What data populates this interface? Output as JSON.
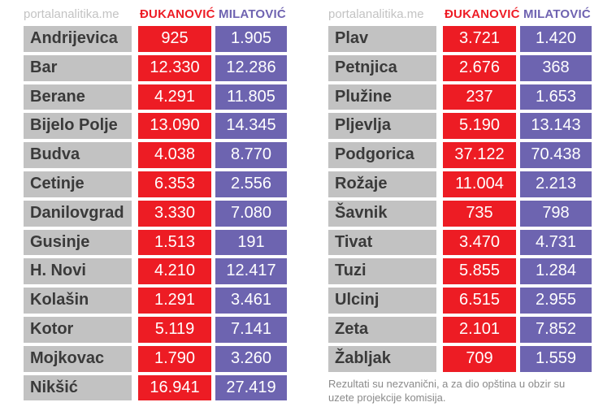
{
  "source": "portalanalitika.me",
  "headers": {
    "dukanovic": "ĐUKANOVIĆ",
    "milatovic": "MILATOVIĆ"
  },
  "colors": {
    "dukanovic": "#ed1c24",
    "milatovic": "#6d64b0",
    "municipality": "#c2c2c2"
  },
  "left": [
    {
      "name": "Andrijevica",
      "dukanovic": "925",
      "milatovic": "1.905"
    },
    {
      "name": "Bar",
      "dukanovic": "12.330",
      "milatovic": "12.286"
    },
    {
      "name": "Berane",
      "dukanovic": "4.291",
      "milatovic": "11.805"
    },
    {
      "name": "Bijelo Polje",
      "dukanovic": "13.090",
      "milatovic": "14.345"
    },
    {
      "name": "Budva",
      "dukanovic": "4.038",
      "milatovic": "8.770"
    },
    {
      "name": "Cetinje",
      "dukanovic": "6.353",
      "milatovic": "2.556"
    },
    {
      "name": "Danilovgrad",
      "dukanovic": "3.330",
      "milatovic": "7.080"
    },
    {
      "name": "Gusinje",
      "dukanovic": "1.513",
      "milatovic": "191"
    },
    {
      "name": "H. Novi",
      "dukanovic": "4.210",
      "milatovic": "12.417"
    },
    {
      "name": "Kolašin",
      "dukanovic": "1.291",
      "milatovic": "3.461"
    },
    {
      "name": "Kotor",
      "dukanovic": "5.119",
      "milatovic": "7.141"
    },
    {
      "name": "Mojkovac",
      "dukanovic": "1.790",
      "milatovic": "3.260"
    },
    {
      "name": "Nikšić",
      "dukanovic": "16.941",
      "milatovic": "27.419"
    }
  ],
  "right": [
    {
      "name": "Plav",
      "dukanovic": "3.721",
      "milatovic": "1.420"
    },
    {
      "name": "Petnjica",
      "dukanovic": "2.676",
      "milatovic": "368"
    },
    {
      "name": "Plužine",
      "dukanovic": "237",
      "milatovic": "1.653"
    },
    {
      "name": "Pljevlja",
      "dukanovic": "5.190",
      "milatovic": "13.143"
    },
    {
      "name": "Podgorica",
      "dukanovic": "37.122",
      "milatovic": "70.438"
    },
    {
      "name": "Rožaje",
      "dukanovic": "11.004",
      "milatovic": "2.213"
    },
    {
      "name": "Šavnik",
      "dukanovic": "735",
      "milatovic": "798"
    },
    {
      "name": "Tivat",
      "dukanovic": "3.470",
      "milatovic": "4.731"
    },
    {
      "name": "Tuzi",
      "dukanovic": "5.855",
      "milatovic": "1.284"
    },
    {
      "name": "Ulcinj",
      "dukanovic": "6.515",
      "milatovic": "2.955"
    },
    {
      "name": "Zeta",
      "dukanovic": "2.101",
      "milatovic": "7.852"
    },
    {
      "name": "Žabljak",
      "dukanovic": "709",
      "milatovic": "1.559"
    }
  ],
  "note": "Rezultati su nezvanični, a za dio opština u obzir su uzete projekcije komisija."
}
